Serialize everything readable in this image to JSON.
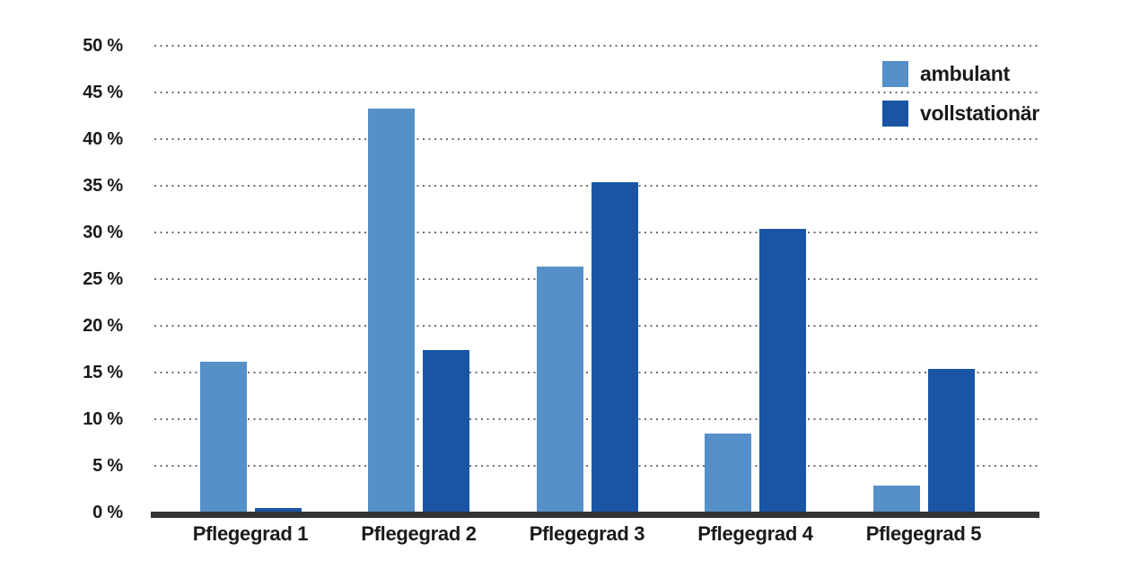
{
  "chart_data": {
    "type": "bar",
    "title": "",
    "xlabel": "",
    "ylabel": "",
    "categories": [
      "Pflegegrad 1",
      "Pflegegrad 2",
      "Pflegegrad 3",
      "Pflegegrad 4",
      "Pflegegrad 5"
    ],
    "series": [
      {
        "name": "ambulant",
        "color": "#5590C8",
        "values": [
          16.2,
          43.3,
          26.3,
          8.5,
          2.9
        ]
      },
      {
        "name": "vollstationär",
        "color": "#1A55A5",
        "values": [
          0.5,
          17.4,
          35.4,
          30.4,
          15.4
        ]
      }
    ],
    "ylim": [
      0,
      50
    ],
    "ytick_step": 5,
    "ytick_suffix": " %",
    "grid": "horizontal-dotted",
    "gridline_values": [
      5,
      10,
      15,
      20,
      25,
      30,
      35,
      40,
      45,
      50
    ],
    "legend_position": "top-right"
  },
  "style": {
    "background": "#ffffff",
    "grid_color": "#707070",
    "axis_color": "#333333",
    "text_color": "#1a1a1a"
  }
}
